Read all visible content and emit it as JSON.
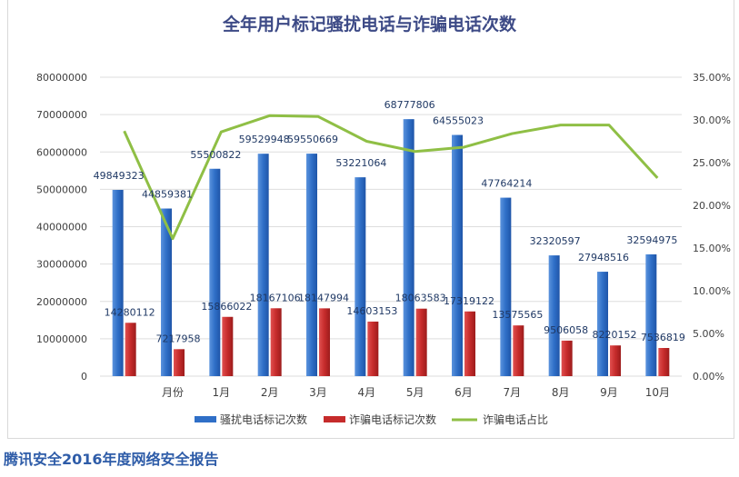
{
  "title": "全年用户标记骚扰电话与诈骗电话次数",
  "footer": "腾讯安全2016年度网络安全报告",
  "colors": {
    "bar1": "#2f6fc7",
    "bar2": "#c62b2b",
    "line": "#8fbf45",
    "title": "#3d4a86",
    "footer": "#2e5ca8"
  },
  "chart_data": {
    "type": "bar",
    "title": "全年用户标记骚扰电话与诈骗电话次数",
    "categories": [
      "",
      "月份",
      "1月",
      "2月",
      "3月",
      "4月",
      "5月",
      "6月",
      "7月",
      "8月",
      "9月",
      "10月"
    ],
    "y_ticks": [
      "0",
      "10000000",
      "20000000",
      "30000000",
      "40000000",
      "50000000",
      "60000000",
      "70000000",
      "80000000"
    ],
    "y2_ticks": [
      "0.00%",
      "5.00%",
      "10.00%",
      "15.00%",
      "20.00%",
      "25.00%",
      "30.00%",
      "35.00%"
    ],
    "ylim": [
      0,
      80000000
    ],
    "y2lim": [
      0,
      0.35
    ],
    "grid": true,
    "legend_position": "bottom",
    "series": [
      {
        "name": "骚扰电话标记次数",
        "type": "bar",
        "axis": "left",
        "values": [
          49849323,
          44859381,
          55500822,
          59529948,
          59550669,
          53221064,
          68777806,
          64555023,
          47764214,
          32320597,
          27948516,
          32594975
        ],
        "labels": [
          "49849323",
          "44859381",
          "55500822",
          "59529948",
          "59550669",
          "53221064",
          "68777806",
          "64555023",
          "47764214",
          "32320597",
          "27948516",
          "32594975"
        ]
      },
      {
        "name": "诈骗电话标记次数",
        "type": "bar",
        "axis": "left",
        "values": [
          14280112,
          7217958,
          15866022,
          18167106,
          18147994,
          14603153,
          18063583,
          17319122,
          13575565,
          9506058,
          8220152,
          7536819
        ],
        "labels": [
          "14280112",
          "7217958",
          "15866022",
          "18167106",
          "18147994",
          "14603153",
          "18063583",
          "17319122",
          "13575565",
          "9506058",
          "8220152",
          "7536819"
        ]
      },
      {
        "name": "诈骗电话占比",
        "type": "line",
        "axis": "right",
        "values": [
          0.287,
          0.161,
          0.286,
          0.305,
          0.304,
          0.275,
          0.263,
          0.268,
          0.284,
          0.294,
          0.294,
          0.232
        ]
      }
    ]
  }
}
